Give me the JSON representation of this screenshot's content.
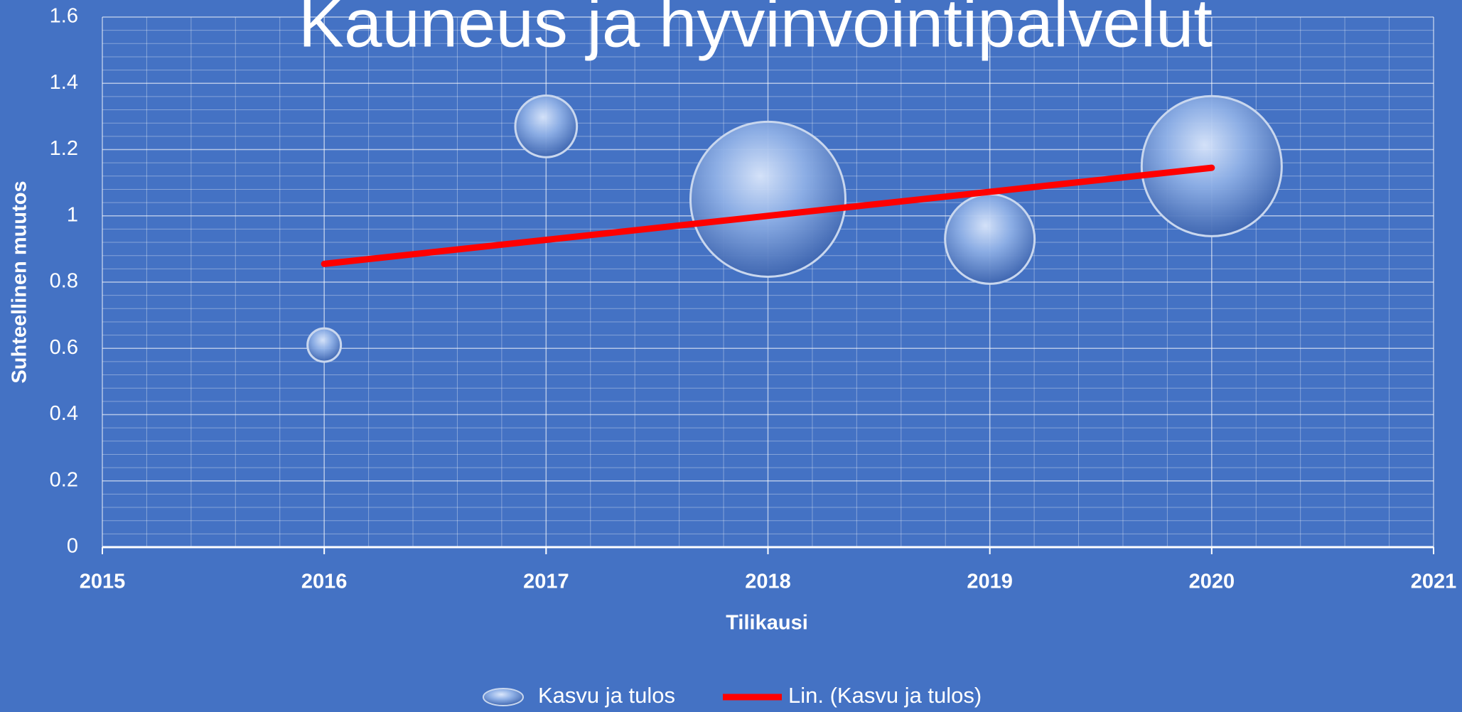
{
  "chart_data": {
    "type": "bubble",
    "title": "Kauneus ja hyvinvointipalvelut",
    "x_label": "Tilikausi",
    "y_label": "Suhteellinen muutos",
    "xlim": [
      2015,
      2021
    ],
    "xticks": [
      2015,
      2016,
      2017,
      2018,
      2019,
      2020,
      2021
    ],
    "ylim": [
      0,
      1.6
    ],
    "yticks": [
      0,
      0.2,
      0.4,
      0.6,
      0.8,
      1,
      1.2,
      1.4,
      1.6
    ],
    "grid": true,
    "minor_grid": true,
    "legend": "bottom",
    "series": [
      {
        "name": "Kasvu ja tulos",
        "color": "#8fb0e6",
        "x": [
          2016,
          2017,
          2018,
          2019,
          2020
        ],
        "values": [
          0.61,
          1.27,
          1.05,
          0.93,
          1.15
        ],
        "sizes": [
          3.2,
          10.9,
          68.9,
          23,
          56.3
        ]
      },
      {
        "name": "Lin. (Kasvu ja tulos)",
        "type": "line",
        "color": "#ff0000",
        "x": [
          2016,
          2020
        ],
        "values": [
          0.855,
          1.145
        ]
      }
    ]
  }
}
